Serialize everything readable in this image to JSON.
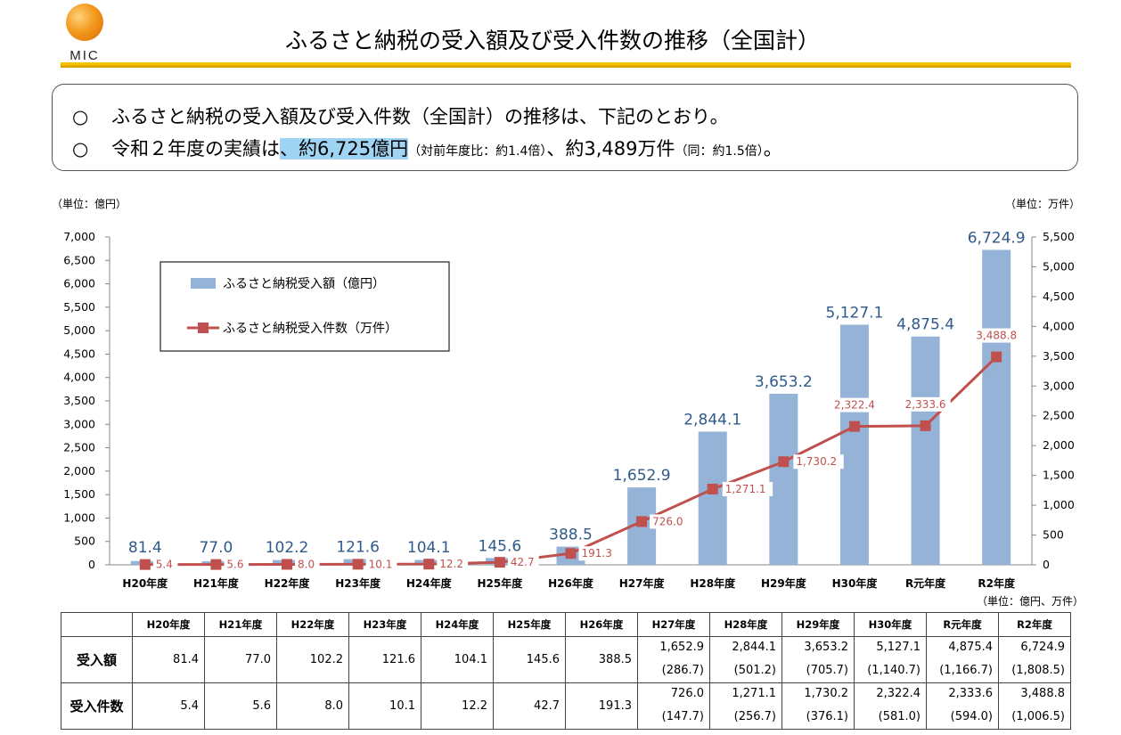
{
  "header": {
    "logo_text": "MIC",
    "title": "ふるさと納税の受入額及び受入件数の推移（全国計）"
  },
  "summary": {
    "bullet": "○",
    "line1": "ふるさと納税の受入額及び受入件数（全国計）の推移は、下記のとおり。",
    "line2_a": "令和２年度の実績は",
    "line2_hl": "、約6,725億円",
    "line2_small1": "（対前年度比：約1.4倍）",
    "line2_b": "、約3,489万件",
    "line2_small2": "（同：約1.5倍）",
    "line2_end": "。"
  },
  "units": {
    "left": "（単位：億円）",
    "right": "（単位：万件）",
    "table": "（単位：億円、万件）"
  },
  "chart_data": {
    "type": "bar+line",
    "categories": [
      "H20年度",
      "H21年度",
      "H22年度",
      "H23年度",
      "H24年度",
      "H25年度",
      "H26年度",
      "H27年度",
      "H28年度",
      "H29年度",
      "H30年度",
      "R元年度",
      "R2年度"
    ],
    "series": [
      {
        "name": "ふるさと納税受入額（億円）",
        "type": "bar",
        "axis": "left",
        "color": "#95b3d7",
        "values": [
          81.4,
          77.0,
          102.2,
          121.6,
          104.1,
          145.6,
          388.5,
          1652.9,
          2844.1,
          3653.2,
          5127.1,
          4875.4,
          6724.9
        ],
        "labels": [
          "81.4",
          "77.0",
          "102.2",
          "121.6",
          "104.1",
          "145.6",
          "388.5",
          "1,652.9",
          "2,844.1",
          "3,653.2",
          "5,127.1",
          "4,875.4",
          "6,724.9"
        ]
      },
      {
        "name": "ふるさと納税受入件数（万件）",
        "type": "line",
        "axis": "right",
        "color": "#c0504d",
        "values": [
          5.4,
          5.6,
          8.0,
          10.1,
          12.2,
          42.7,
          191.3,
          726.0,
          1271.1,
          1730.2,
          2322.4,
          2333.6,
          3488.8
        ],
        "labels": [
          "5.4",
          "5.6",
          "8.0",
          "10.1",
          "12.2",
          "42.7",
          "191.3",
          "726.0",
          "1,271.1",
          "1,730.2",
          "2,322.4",
          "2,333.6",
          "3,488.8"
        ]
      }
    ],
    "ylim_left": [
      0,
      7000
    ],
    "ylim_right": [
      0,
      5500
    ],
    "yticks_left": [
      "0",
      "500",
      "1,000",
      "1,500",
      "2,000",
      "2,500",
      "3,000",
      "3,500",
      "4,000",
      "4,500",
      "5,000",
      "5,500",
      "6,000",
      "6,500",
      "7,000"
    ],
    "yticks_right": [
      "0",
      "500",
      "1,000",
      "1,500",
      "2,000",
      "2,500",
      "3,000",
      "3,500",
      "4,000",
      "4,500",
      "5,000",
      "5,500"
    ],
    "legend": "top-left"
  },
  "table": {
    "columns": [
      "H20年度",
      "H21年度",
      "H22年度",
      "H23年度",
      "H24年度",
      "H25年度",
      "H26年度",
      "H27年度",
      "H28年度",
      "H29年度",
      "H30年度",
      "R元年度",
      "R2年度"
    ],
    "rows": [
      {
        "label": "受入額",
        "values": [
          "81.4",
          "77.0",
          "102.2",
          "121.6",
          "104.1",
          "145.6",
          "388.5",
          "1,652.9",
          "2,844.1",
          "3,653.2",
          "5,127.1",
          "4,875.4",
          "6,724.9"
        ],
        "sub": [
          "",
          "",
          "",
          "",
          "",
          "",
          "",
          "(286.7)",
          "(501.2)",
          "(705.7)",
          "(1,140.7)",
          "(1,166.7)",
          "(1,808.5)"
        ]
      },
      {
        "label": "受入件数",
        "values": [
          "5.4",
          "5.6",
          "8.0",
          "10.1",
          "12.2",
          "42.7",
          "191.3",
          "726.0",
          "1,271.1",
          "1,730.2",
          "2,322.4",
          "2,333.6",
          "3,488.8"
        ],
        "sub": [
          "",
          "",
          "",
          "",
          "",
          "",
          "",
          "(147.7)",
          "(256.7)",
          "(376.1)",
          "(581.0)",
          "(594.0)",
          "(1,006.5)"
        ]
      }
    ]
  }
}
